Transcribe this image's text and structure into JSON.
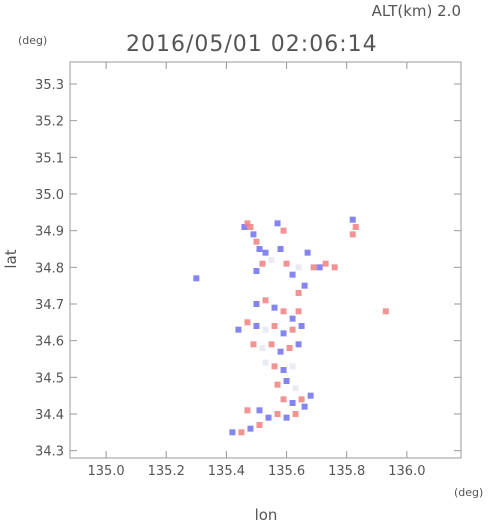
{
  "header": {
    "altitude_label": "ALT(km) 2.0",
    "timestamp": "2016/05/01 02:06:14"
  },
  "chart_data": {
    "type": "heatmap",
    "title": "2016/05/01 02:06:14",
    "subtitle": "ALT(km) 2.0",
    "xlabel": "lon",
    "ylabel": "lat",
    "xunit": "(deg)",
    "yunit": "(deg)",
    "xlim": [
      134.88,
      136.18
    ],
    "ylim": [
      34.28,
      35.36
    ],
    "xticks": [
      135.0,
      135.2,
      135.4,
      135.6,
      135.8,
      136.0
    ],
    "xtick_labels": [
      "135.0",
      "135.2",
      "135.4",
      "135.6",
      "135.8",
      "136.0"
    ],
    "yticks": [
      34.3,
      34.4,
      34.5,
      34.6,
      34.7,
      34.8,
      34.9,
      35.0,
      35.1,
      35.2,
      35.3
    ],
    "ytick_labels": [
      "34.3",
      "34.4",
      "34.5",
      "34.6",
      "34.7",
      "34.8",
      "34.9",
      "35.0",
      "35.1",
      "35.2",
      "35.3"
    ],
    "colors": {
      "positive": "#f08080",
      "negative": "#7070f0",
      "near_zero": "#e6e6f2"
    },
    "grid": false,
    "echo_points": [
      {
        "lon": 135.46,
        "lat": 34.91,
        "v": -1
      },
      {
        "lon": 135.47,
        "lat": 34.92,
        "v": 1
      },
      {
        "lon": 135.48,
        "lat": 34.91,
        "v": 1
      },
      {
        "lon": 135.49,
        "lat": 34.89,
        "v": -1
      },
      {
        "lon": 135.5,
        "lat": 34.87,
        "v": 1
      },
      {
        "lon": 135.51,
        "lat": 34.85,
        "v": -1
      },
      {
        "lon": 135.53,
        "lat": 34.84,
        "v": -1
      },
      {
        "lon": 135.52,
        "lat": 34.81,
        "v": 1
      },
      {
        "lon": 135.5,
        "lat": 34.79,
        "v": -1
      },
      {
        "lon": 135.55,
        "lat": 34.82,
        "v": 0
      },
      {
        "lon": 135.57,
        "lat": 34.92,
        "v": -1
      },
      {
        "lon": 135.59,
        "lat": 34.9,
        "v": 1
      },
      {
        "lon": 135.58,
        "lat": 34.85,
        "v": -1
      },
      {
        "lon": 135.6,
        "lat": 34.81,
        "v": 1
      },
      {
        "lon": 135.62,
        "lat": 34.78,
        "v": -1
      },
      {
        "lon": 135.64,
        "lat": 34.8,
        "v": 0
      },
      {
        "lon": 135.67,
        "lat": 34.84,
        "v": -1
      },
      {
        "lon": 135.69,
        "lat": 34.8,
        "v": 1
      },
      {
        "lon": 135.71,
        "lat": 34.8,
        "v": -1
      },
      {
        "lon": 135.73,
        "lat": 34.81,
        "v": 1
      },
      {
        "lon": 135.76,
        "lat": 34.8,
        "v": 1
      },
      {
        "lon": 135.82,
        "lat": 34.93,
        "v": -1
      },
      {
        "lon": 135.83,
        "lat": 34.91,
        "v": 1
      },
      {
        "lon": 135.82,
        "lat": 34.89,
        "v": 1
      },
      {
        "lon": 135.66,
        "lat": 34.75,
        "v": -1
      },
      {
        "lon": 135.64,
        "lat": 34.73,
        "v": 1
      },
      {
        "lon": 135.3,
        "lat": 34.77,
        "v": -1
      },
      {
        "lon": 135.5,
        "lat": 34.7,
        "v": -1
      },
      {
        "lon": 135.53,
        "lat": 34.71,
        "v": 1
      },
      {
        "lon": 135.56,
        "lat": 34.69,
        "v": -1
      },
      {
        "lon": 135.59,
        "lat": 34.68,
        "v": 1
      },
      {
        "lon": 135.62,
        "lat": 34.66,
        "v": -1
      },
      {
        "lon": 135.64,
        "lat": 34.68,
        "v": 1
      },
      {
        "lon": 135.47,
        "lat": 34.65,
        "v": 1
      },
      {
        "lon": 135.5,
        "lat": 34.64,
        "v": -1
      },
      {
        "lon": 135.53,
        "lat": 34.63,
        "v": 0
      },
      {
        "lon": 135.56,
        "lat": 34.64,
        "v": 1
      },
      {
        "lon": 135.59,
        "lat": 34.62,
        "v": -1
      },
      {
        "lon": 135.62,
        "lat": 34.63,
        "v": 1
      },
      {
        "lon": 135.65,
        "lat": 34.64,
        "v": -1
      },
      {
        "lon": 135.44,
        "lat": 34.63,
        "v": -1
      },
      {
        "lon": 135.49,
        "lat": 34.59,
        "v": 1
      },
      {
        "lon": 135.52,
        "lat": 34.58,
        "v": 0
      },
      {
        "lon": 135.55,
        "lat": 34.59,
        "v": 1
      },
      {
        "lon": 135.58,
        "lat": 34.57,
        "v": -1
      },
      {
        "lon": 135.61,
        "lat": 34.58,
        "v": 1
      },
      {
        "lon": 135.64,
        "lat": 34.59,
        "v": -1
      },
      {
        "lon": 135.53,
        "lat": 34.54,
        "v": 0
      },
      {
        "lon": 135.56,
        "lat": 34.53,
        "v": 1
      },
      {
        "lon": 135.59,
        "lat": 34.52,
        "v": -1
      },
      {
        "lon": 135.62,
        "lat": 34.53,
        "v": 0
      },
      {
        "lon": 135.57,
        "lat": 34.48,
        "v": 1
      },
      {
        "lon": 135.6,
        "lat": 34.49,
        "v": -1
      },
      {
        "lon": 135.63,
        "lat": 34.47,
        "v": 0
      },
      {
        "lon": 135.59,
        "lat": 34.44,
        "v": 1
      },
      {
        "lon": 135.62,
        "lat": 34.43,
        "v": -1
      },
      {
        "lon": 135.65,
        "lat": 34.44,
        "v": 1
      },
      {
        "lon": 135.68,
        "lat": 34.45,
        "v": -1
      },
      {
        "lon": 135.66,
        "lat": 34.42,
        "v": -1
      },
      {
        "lon": 135.63,
        "lat": 34.4,
        "v": 1
      },
      {
        "lon": 135.6,
        "lat": 34.39,
        "v": -1
      },
      {
        "lon": 135.57,
        "lat": 34.4,
        "v": 1
      },
      {
        "lon": 135.54,
        "lat": 34.39,
        "v": -1
      },
      {
        "lon": 135.51,
        "lat": 34.37,
        "v": 1
      },
      {
        "lon": 135.48,
        "lat": 34.36,
        "v": -1
      },
      {
        "lon": 135.45,
        "lat": 34.35,
        "v": 1
      },
      {
        "lon": 135.42,
        "lat": 34.35,
        "v": -1
      },
      {
        "lon": 135.47,
        "lat": 34.41,
        "v": 1
      },
      {
        "lon": 135.51,
        "lat": 34.41,
        "v": -1
      },
      {
        "lon": 135.93,
        "lat": 34.68,
        "v": 1
      }
    ]
  }
}
